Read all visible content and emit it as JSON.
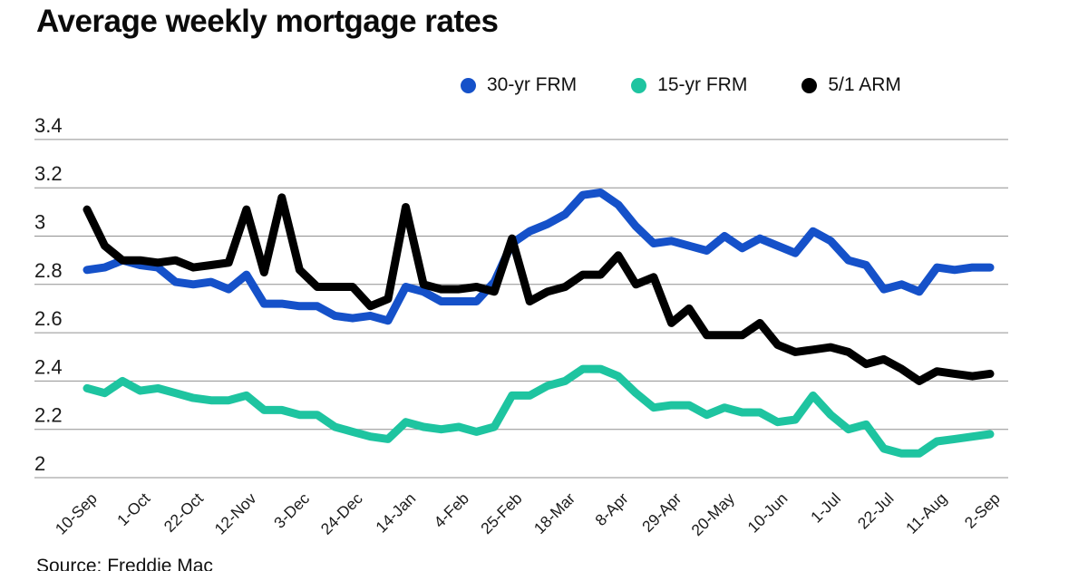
{
  "title": "Average weekly mortgage rates",
  "source": "Source: Freddie Mac",
  "colors": {
    "background": "#ffffff",
    "gridline": "#909090",
    "axis_text": "#1a1a1a",
    "title_text": "#0b0b0b",
    "blue": "#1551c9",
    "teal": "#1ec4a0",
    "black": "#000000"
  },
  "legend": [
    {
      "label": "30-yr FRM",
      "color": "#1551c9"
    },
    {
      "label": "15-yr FRM",
      "color": "#1ec4a0"
    },
    {
      "label": "5/1 ARM",
      "color": "#000000"
    }
  ],
  "chart_data": {
    "type": "line",
    "title": "Average weekly mortgage rates",
    "xlabel": "",
    "ylabel": "",
    "ylim": [
      2.0,
      3.4
    ],
    "grid": "horizontal",
    "legend_position": "top",
    "x": [
      0,
      1,
      2,
      3,
      4,
      5,
      6,
      7,
      8,
      9,
      10,
      11,
      12,
      13,
      14,
      15,
      16,
      17,
      18,
      19,
      20,
      21,
      22,
      23,
      24,
      25,
      26,
      27,
      28,
      29,
      30,
      31,
      32,
      33,
      34,
      35,
      36,
      37,
      38,
      39,
      40,
      41,
      42,
      43,
      44,
      45,
      46,
      47,
      48,
      49,
      50,
      51
    ],
    "x_tick_weeks": [
      0,
      3,
      6,
      9,
      12,
      15,
      18,
      21,
      24,
      27,
      30,
      33,
      36,
      39,
      42,
      45,
      48,
      51
    ],
    "x_tick_labels": [
      "10-Sep",
      "1-Oct",
      "22-Oct",
      "12-Nov",
      "3-Dec",
      "24-Dec",
      "14-Jan",
      "4-Feb",
      "25-Feb",
      "18-Mar",
      "8-Apr",
      "29-Apr",
      "20-May",
      "10-Jun",
      "1-Jul",
      "22-Jul",
      "11-Aug",
      "2-Sep"
    ],
    "y_tick_values": [
      3.4,
      3.2,
      3.0,
      2.8,
      2.6,
      2.4,
      2.2,
      2.0
    ],
    "y_tick_labels": [
      "3.4",
      "3.2",
      "3",
      "2.8",
      "2.6",
      "2.4",
      "2.2",
      "2"
    ],
    "series": [
      {
        "name": "30-yr FRM",
        "color": "#1551c9",
        "values": [
          2.86,
          2.87,
          2.9,
          2.88,
          2.87,
          2.81,
          2.8,
          2.81,
          2.78,
          2.84,
          2.72,
          2.72,
          2.71,
          2.71,
          2.67,
          2.66,
          2.67,
          2.65,
          2.79,
          2.77,
          2.73,
          2.73,
          2.73,
          2.81,
          2.97,
          3.02,
          3.05,
          3.09,
          3.17,
          3.18,
          3.13,
          3.04,
          2.97,
          2.98,
          2.96,
          2.94,
          3.0,
          2.95,
          2.99,
          2.96,
          2.93,
          3.02,
          2.98,
          2.9,
          2.88,
          2.78,
          2.8,
          2.77,
          2.87,
          2.86,
          2.87,
          2.87
        ]
      },
      {
        "name": "15-yr FRM",
        "color": "#1ec4a0",
        "values": [
          2.37,
          2.35,
          2.4,
          2.36,
          2.37,
          2.35,
          2.33,
          2.32,
          2.32,
          2.34,
          2.28,
          2.28,
          2.26,
          2.26,
          2.21,
          2.19,
          2.17,
          2.16,
          2.23,
          2.21,
          2.2,
          2.21,
          2.19,
          2.21,
          2.34,
          2.34,
          2.38,
          2.4,
          2.45,
          2.45,
          2.42,
          2.35,
          2.29,
          2.3,
          2.3,
          2.26,
          2.29,
          2.27,
          2.27,
          2.23,
          2.24,
          2.34,
          2.26,
          2.2,
          2.22,
          2.12,
          2.1,
          2.1,
          2.15,
          2.16,
          2.17,
          2.18
        ]
      },
      {
        "name": "5/1 ARM",
        "color": "#000000",
        "values": [
          3.11,
          2.96,
          2.9,
          2.9,
          2.89,
          2.9,
          2.87,
          2.88,
          2.89,
          3.11,
          2.85,
          3.16,
          2.86,
          2.79,
          2.79,
          2.79,
          2.71,
          2.74,
          3.12,
          2.8,
          2.78,
          2.78,
          2.79,
          2.77,
          2.99,
          2.73,
          2.77,
          2.79,
          2.84,
          2.84,
          2.92,
          2.8,
          2.83,
          2.64,
          2.7,
          2.59,
          2.59,
          2.59,
          2.64,
          2.55,
          2.52,
          2.53,
          2.54,
          2.52,
          2.47,
          2.49,
          2.45,
          2.4,
          2.44,
          2.43,
          2.42,
          2.43
        ]
      }
    ]
  }
}
